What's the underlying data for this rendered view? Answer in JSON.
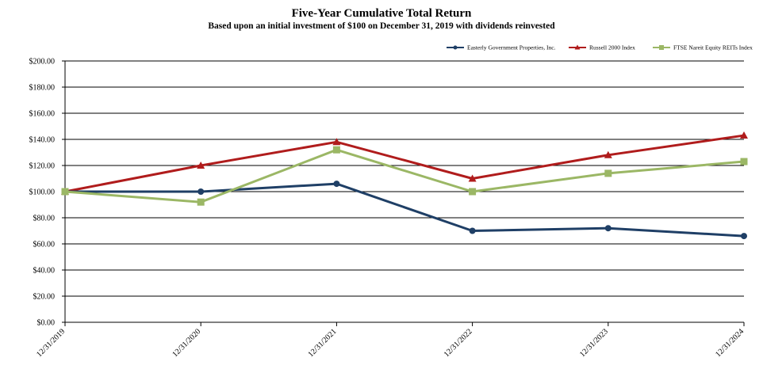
{
  "chart_data": {
    "type": "line",
    "title": "Five-Year Cumulative Total Return",
    "subtitle": "Based upon an initial investment of $100 on December 31, 2019 with dividends reinvested",
    "categories": [
      "12/31/2019",
      "12/31/2020",
      "12/31/2021",
      "12/31/2022",
      "12/31/2023",
      "12/31/2024"
    ],
    "yticks": [
      "$0.00",
      "$20.00",
      "$40.00",
      "$60.00",
      "$80.00",
      "$100.00",
      "$120.00",
      "$140.00",
      "$160.00",
      "$180.00",
      "$200.00"
    ],
    "ylim": [
      0,
      200
    ],
    "grid": true,
    "legend_position": "top-right",
    "series": [
      {
        "name": "Easterly Government Properties, Inc.",
        "color": "#1f3f66",
        "marker": "circle",
        "values": [
          100,
          100,
          106,
          70,
          72,
          66
        ]
      },
      {
        "name": "Russell 2000 Index",
        "color": "#b01c1c",
        "marker": "triangle",
        "values": [
          100,
          120,
          138,
          110,
          128,
          143
        ]
      },
      {
        "name": "FTSE Nareit Equity REITs Index",
        "color": "#9bb765",
        "marker": "square",
        "values": [
          100,
          92,
          132,
          100,
          114,
          123
        ]
      }
    ]
  }
}
